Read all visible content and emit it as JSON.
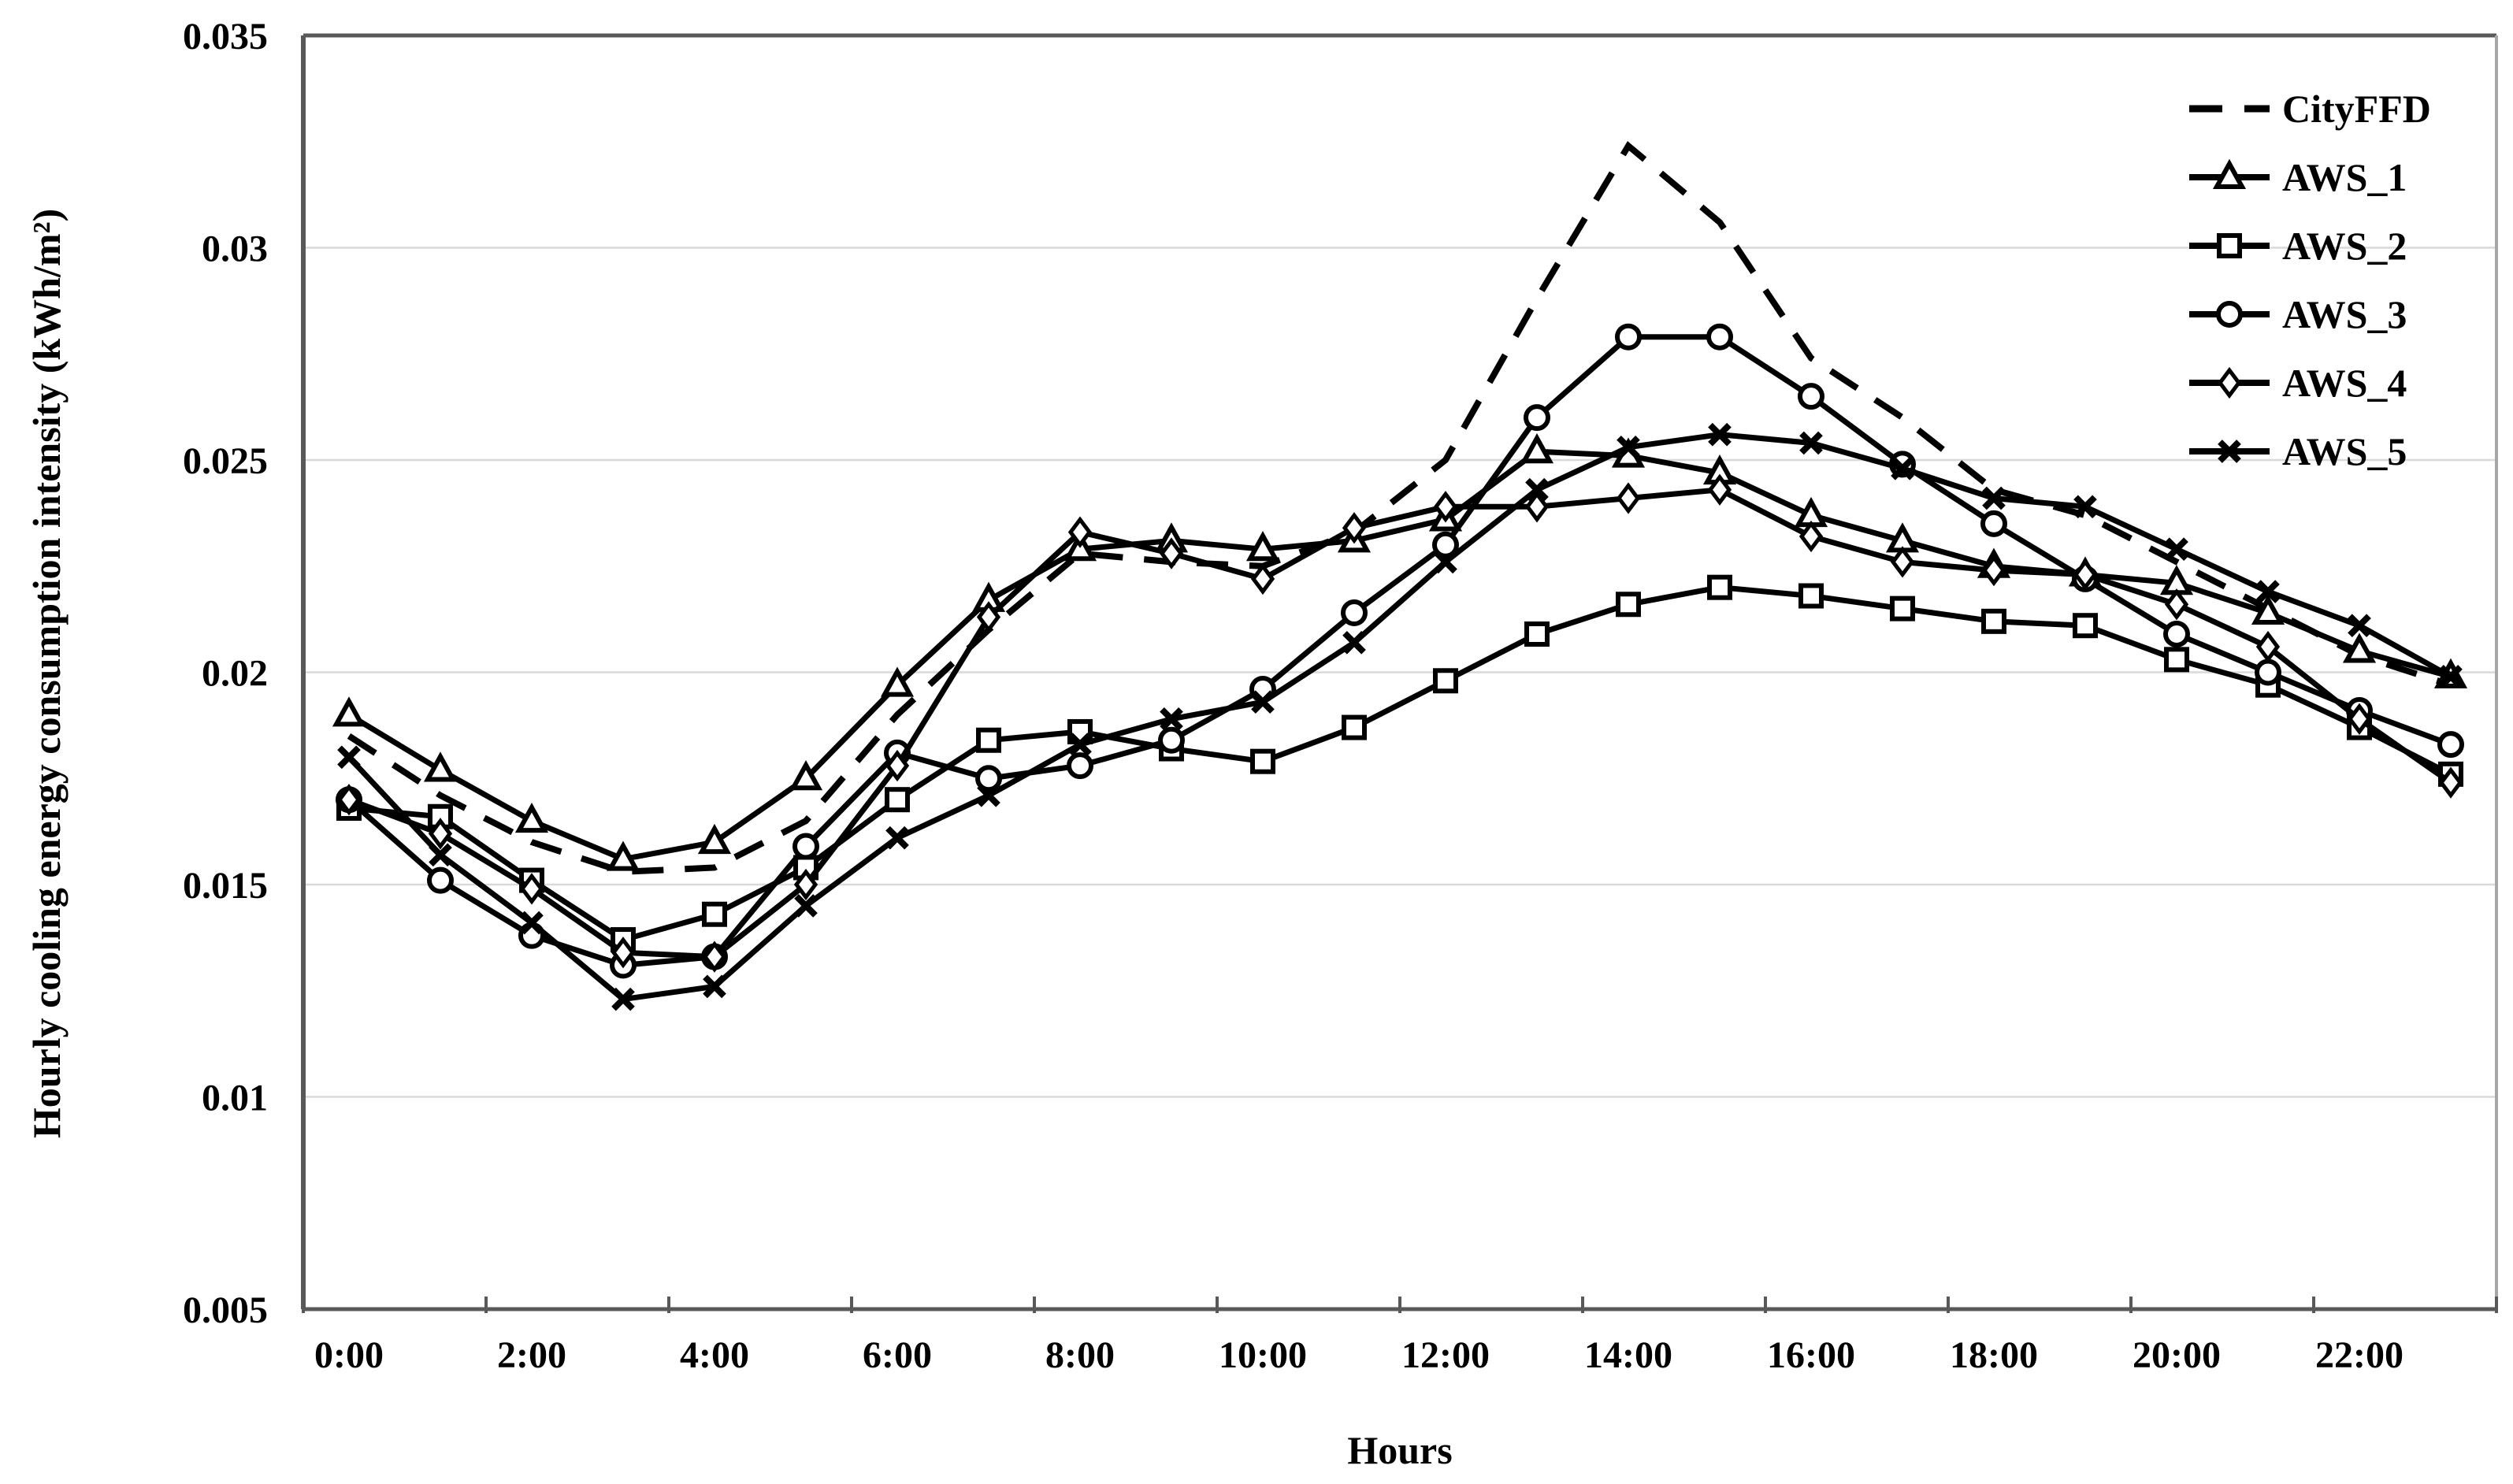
{
  "chart_data": {
    "type": "line",
    "title": "",
    "xlabel": "Hours",
    "ylabel": "Hourly cooling energy consumption intensity (kWh/m²)",
    "x_axis": {
      "title": "Hours",
      "categories": [
        "0:00",
        "1:00",
        "2:00",
        "3:00",
        "4:00",
        "5:00",
        "6:00",
        "7:00",
        "8:00",
        "9:00",
        "10:00",
        "11:00",
        "12:00",
        "13:00",
        "14:00",
        "15:00",
        "16:00",
        "17:00",
        "18:00",
        "19:00",
        "20:00",
        "21:00",
        "22:00",
        "23:00"
      ],
      "tick_labels": [
        "0:00",
        "2:00",
        "4:00",
        "6:00",
        "8:00",
        "10:00",
        "12:00",
        "14:00",
        "16:00",
        "18:00",
        "20:00",
        "22:00"
      ]
    },
    "y_axis": {
      "title": "Hourly cooling energy consumption intensity (kWh/m²)",
      "min": 0.005,
      "max": 0.035,
      "step": 0.005,
      "tick_labels": [
        "0.005",
        "0.01",
        "0.015",
        "0.02",
        "0.025",
        "0.03",
        "0.035"
      ]
    },
    "grid": "horizontal",
    "legend_position": "top-right-inside",
    "colors": {
      "series": "#000000",
      "gridline": "#d9d9d9",
      "axis": "#595959",
      "border_right": "#a6a6a6",
      "background": "#ffffff"
    },
    "series": [
      {
        "name": "CityFFD",
        "line": "dashed",
        "marker": "none",
        "values": [
          0.0185,
          0.0171,
          0.016,
          0.0153,
          0.0154,
          0.0165,
          0.019,
          0.021,
          0.0228,
          0.0226,
          0.0225,
          0.0233,
          0.025,
          0.0288,
          0.0324,
          0.0306,
          0.0274,
          0.026,
          0.0243,
          0.0237,
          0.0226,
          0.0215,
          0.0204,
          0.0197
        ]
      },
      {
        "name": "AWS_1",
        "line": "solid",
        "marker": "triangle",
        "values": [
          0.019,
          0.0177,
          0.0165,
          0.0156,
          0.016,
          0.0175,
          0.0197,
          0.0217,
          0.0229,
          0.0231,
          0.0229,
          0.0231,
          0.0236,
          0.0252,
          0.0251,
          0.0247,
          0.0237,
          0.0231,
          0.0225,
          0.0223,
          0.0221,
          0.0214,
          0.0205,
          0.0199
        ]
      },
      {
        "name": "AWS_2",
        "line": "solid",
        "marker": "square",
        "values": [
          0.0168,
          0.0166,
          0.0151,
          0.0137,
          0.0143,
          0.0154,
          0.017,
          0.0184,
          0.0186,
          0.0182,
          0.0179,
          0.0187,
          0.0198,
          0.0209,
          0.0216,
          0.022,
          0.0218,
          0.0215,
          0.0212,
          0.0211,
          0.0203,
          0.0197,
          0.0187,
          0.0176
        ]
      },
      {
        "name": "AWS_3",
        "line": "solid",
        "marker": "circle",
        "values": [
          0.017,
          0.0151,
          0.0138,
          0.0131,
          0.0133,
          0.0159,
          0.0181,
          0.0175,
          0.0178,
          0.0184,
          0.0196,
          0.0214,
          0.023,
          0.026,
          0.0279,
          0.0279,
          0.0265,
          0.0249,
          0.0235,
          0.0222,
          0.0209,
          0.02,
          0.0191,
          0.0183
        ]
      },
      {
        "name": "AWS_4",
        "line": "solid",
        "marker": "diamond",
        "values": [
          0.017,
          0.0162,
          0.0149,
          0.0134,
          0.0133,
          0.015,
          0.0178,
          0.0213,
          0.0233,
          0.0228,
          0.0222,
          0.0234,
          0.0239,
          0.0239,
          0.0241,
          0.0243,
          0.0232,
          0.0226,
          0.0224,
          0.0223,
          0.0216,
          0.0206,
          0.0189,
          0.0174
        ]
      },
      {
        "name": "AWS_5",
        "line": "solid",
        "marker": "x",
        "values": [
          0.018,
          0.0157,
          0.0141,
          0.0123,
          0.0126,
          0.0145,
          0.0161,
          0.0171,
          0.0183,
          0.0189,
          0.0193,
          0.0207,
          0.0226,
          0.0243,
          0.0253,
          0.0256,
          0.0254,
          0.0248,
          0.0241,
          0.0239,
          0.0229,
          0.0219,
          0.0211,
          0.0199
        ]
      }
    ]
  }
}
